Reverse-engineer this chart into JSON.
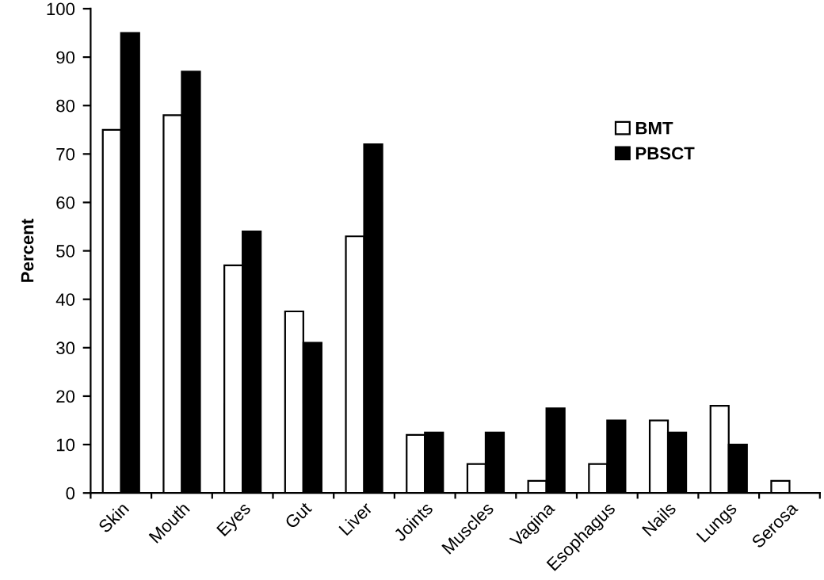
{
  "chart_data": {
    "type": "bar",
    "ylabel": "Percent",
    "categories": [
      "Skin",
      "Mouth",
      "Eyes",
      "Gut",
      "Liver",
      "Joints",
      "Muscles",
      "Vagina",
      "Esophagus",
      "Nails",
      "Lungs",
      "Serosa"
    ],
    "series": [
      {
        "name": "BMT",
        "color": "#ffffff",
        "values": [
          75,
          78,
          47,
          37.5,
          53,
          12,
          6,
          2.5,
          6,
          15,
          18,
          2.5
        ]
      },
      {
        "name": "PBSCT",
        "color": "#000000",
        "values": [
          95,
          87,
          54,
          31,
          72,
          12.5,
          12.5,
          17.5,
          15,
          12.5,
          10,
          0
        ]
      }
    ],
    "ylim": [
      0,
      100
    ],
    "yticks": [
      0,
      10,
      20,
      30,
      40,
      50,
      60,
      70,
      80,
      90,
      100
    ],
    "grid": false,
    "legend": "top right"
  }
}
